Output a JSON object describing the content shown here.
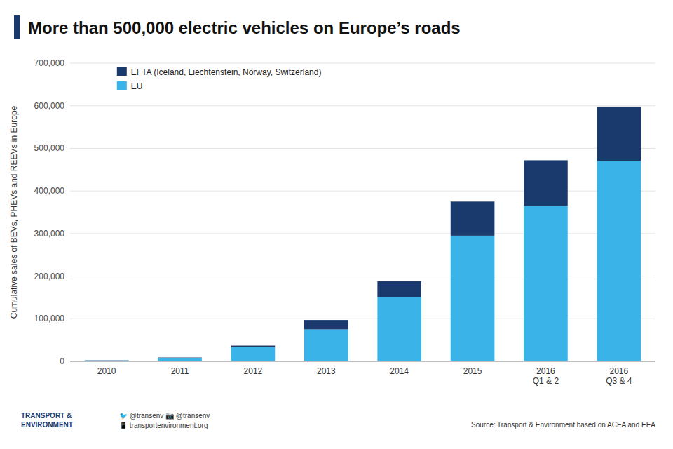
{
  "chart_data": {
    "type": "bar",
    "stacked": true,
    "title": "More than 500,000 electric vehicles on Europe’s roads",
    "ylabel": "Cumulative sales of BEVs, PHEVs and REEVs in Europe",
    "categories": [
      "2010",
      "2011",
      "2012",
      "2013",
      "2014",
      "2015",
      "2016\nQ1 & 2",
      "2016\nQ3 & 4"
    ],
    "series": [
      {
        "name": "EU",
        "color": "#3ab4e8",
        "values": [
          2000,
          7000,
          33000,
          75000,
          150000,
          295000,
          365000,
          470000
        ]
      },
      {
        "name": "EFTA (Iceland, Liechtenstein, Norway, Switzerland)",
        "color": "#1a3a6e",
        "values": [
          500,
          2000,
          4000,
          22000,
          38000,
          80000,
          107000,
          128000
        ]
      }
    ],
    "ylim": [
      0,
      700000
    ],
    "yticks": [
      0,
      {
        "value": 100000,
        "label": "100,000"
      },
      {
        "value": 200000,
        "label": "200,000"
      },
      {
        "value": 300000,
        "label": "300,000"
      },
      {
        "value": 400000,
        "label": "400,000"
      },
      {
        "value": 500000,
        "label": "500,000"
      },
      {
        "value": 600000,
        "label": "600,000"
      },
      {
        "value": 700000,
        "label": "700,000"
      }
    ],
    "grid": true,
    "legend": "upper left",
    "annotations": [
      "TRANSPORT &\nENVIRONMENT",
      "🐦 @transenv  📷 @transenv\n📱 transportenvironment.org",
      "Source: Transport & Environment based on ACEA and EEA"
    ]
  }
}
